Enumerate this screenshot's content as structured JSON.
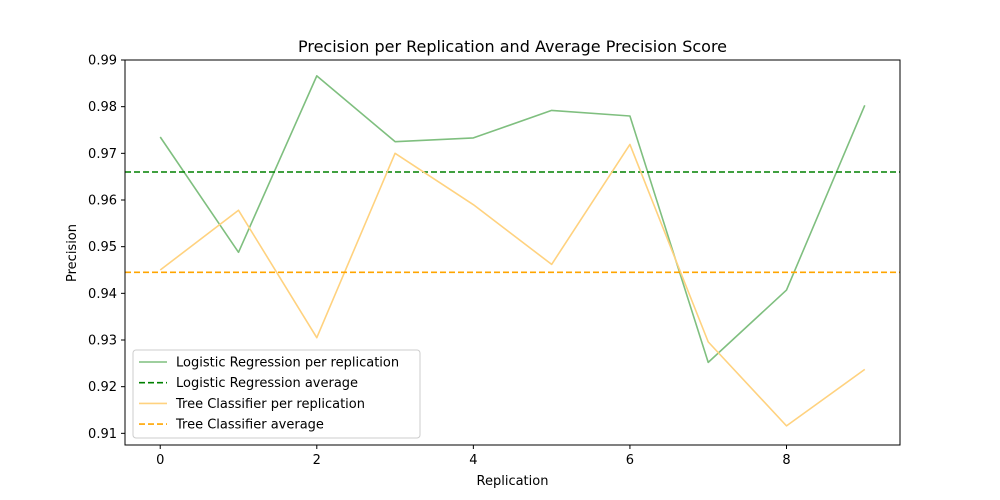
{
  "chart_data": {
    "type": "line",
    "title": "Precision per Replication and Average Precision Score",
    "xlabel": "Replication",
    "ylabel": "Precision",
    "xlim": [
      -0.45,
      9.45
    ],
    "ylim": [
      0.9075,
      0.99
    ],
    "xticks": [
      0,
      2,
      4,
      6,
      8
    ],
    "yticks": [
      0.91,
      0.92,
      0.93,
      0.94,
      0.95,
      0.96,
      0.97,
      0.98,
      0.99
    ],
    "ytick_labels": [
      "0.91",
      "0.92",
      "0.93",
      "0.94",
      "0.95",
      "0.96",
      "0.97",
      "0.98",
      "0.99"
    ],
    "grid": false,
    "legend_position": "lower-left",
    "x": [
      0,
      1,
      2,
      3,
      4,
      5,
      6,
      7,
      8,
      9
    ],
    "series": [
      {
        "name": "Logistic Regression per replication",
        "kind": "line",
        "color": "#7fbf7f",
        "values": [
          0.9735,
          0.9488,
          0.9866,
          0.9725,
          0.9733,
          0.9792,
          0.978,
          0.9252,
          0.9407,
          0.9803
        ]
      },
      {
        "name": "Logistic Regression average",
        "kind": "hline",
        "color": "#008000",
        "value": 0.966
      },
      {
        "name": "Tree Classifier per replication",
        "kind": "line",
        "color": "#ffd27f",
        "values": [
          0.945,
          0.9578,
          0.9305,
          0.97,
          0.959,
          0.9462,
          0.9719,
          0.9296,
          0.9116,
          0.9237
        ]
      },
      {
        "name": "Tree Classifier average",
        "kind": "hline",
        "color": "#ffa500",
        "value": 0.9445
      }
    ]
  }
}
